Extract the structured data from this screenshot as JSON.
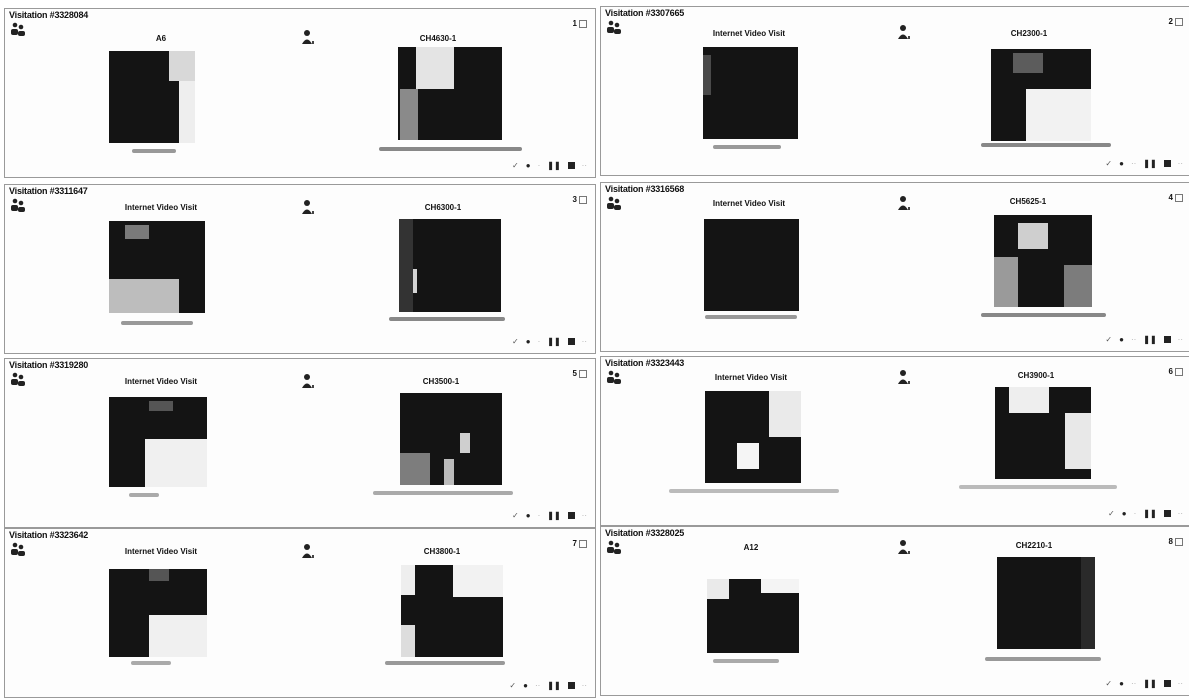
{
  "panels": [
    {
      "title": "Visitation #3328084",
      "location": "A6",
      "camera": "CH4630-1",
      "index": "1"
    },
    {
      "title": "Visitation #3307665",
      "location": "Internet Video Visit",
      "camera": "CH2300-1",
      "index": "2"
    },
    {
      "title": "Visitation #3311647",
      "location": "Internet Video Visit",
      "camera": "CH6300-1",
      "index": "3"
    },
    {
      "title": "Visitation #3316568",
      "location": "Internet Video Visit",
      "camera": "CH5625-1",
      "index": "4"
    },
    {
      "title": "Visitation #3319280",
      "location": "Internet Video Visit",
      "camera": "CH3500-1",
      "index": "5"
    },
    {
      "title": "Visitation #3323443",
      "location": "Internet Video Visit",
      "camera": "CH3900-1",
      "index": "6"
    },
    {
      "title": "Visitation #3323642",
      "location": "Internet Video Visit",
      "camera": "CH3800-1",
      "index": "7"
    },
    {
      "title": "Visitation #3328025",
      "location": "A12",
      "camera": "CH2210-1",
      "index": "8"
    }
  ],
  "icons": {
    "group": "group-icon",
    "user": "user-icon",
    "check": "check-icon",
    "record": "record-icon",
    "pause": "pause-icon",
    "stop": "stop-icon"
  },
  "colors": {
    "frame": "#141414",
    "border": "#9a9a9a"
  }
}
